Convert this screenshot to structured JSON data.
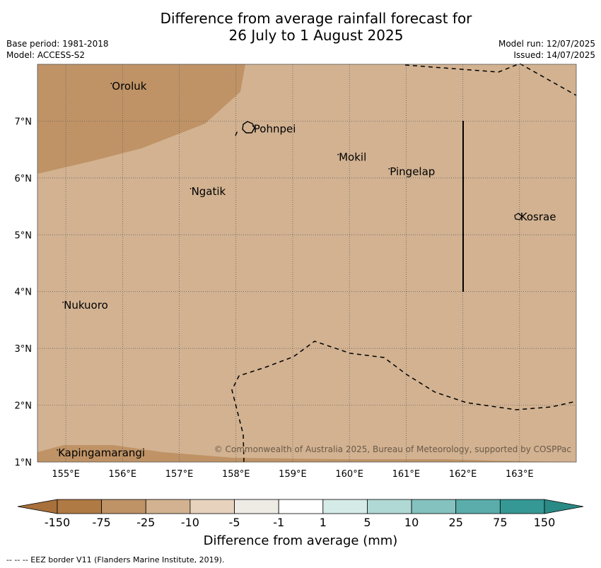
{
  "title_line1": "Difference from average rainfall forecast for",
  "title_line2": "26 July to 1 August 2025",
  "base_period": "Base period: 1981-2018",
  "model": "Model: ACCESS-S2",
  "model_run": "Model run: 12/07/2025",
  "issued": "Issued: 14/07/2025",
  "map": {
    "lon_range": [
      154.5,
      164.0
    ],
    "lat_range": [
      1.0,
      8.0
    ],
    "lon_ticks": [
      "155°E",
      "156°E",
      "157°E",
      "158°E",
      "159°E",
      "160°E",
      "161°E",
      "162°E",
      "163°E"
    ],
    "lat_ticks": [
      "1°N",
      "2°N",
      "3°N",
      "4°N",
      "5°N",
      "6°N",
      "7°N"
    ],
    "background_color": "#d2b291",
    "dry_color": "#bf9366",
    "places": [
      {
        "name": "Oroluk",
        "lon": 155.8,
        "lat": 7.6
      },
      {
        "name": "Pohnpei",
        "lon": 158.3,
        "lat": 6.85
      },
      {
        "name": "Mokil",
        "lon": 159.8,
        "lat": 6.35
      },
      {
        "name": "Pingelap",
        "lon": 160.7,
        "lat": 6.1
      },
      {
        "name": "Ngatik",
        "lon": 157.2,
        "lat": 5.75
      },
      {
        "name": "Kosrae",
        "lon": 163.0,
        "lat": 5.3
      },
      {
        "name": "Nukuoro",
        "lon": 154.95,
        "lat": 3.75
      },
      {
        "name": "Kapingamarangi",
        "lon": 154.85,
        "lat": 1.15
      }
    ],
    "copyright": "© Commonwealth of Australia 2025, Bureau of Meteorology, supported by COSPPac"
  },
  "colorbar": {
    "labels": [
      "-150",
      "-75",
      "-25",
      "-10",
      "-5",
      "-1",
      "1",
      "5",
      "10",
      "25",
      "75",
      "150"
    ],
    "colors": [
      "#a8703a",
      "#b07a45",
      "#bf9366",
      "#d2b291",
      "#e6d2bd",
      "#eeeae4",
      "#ffffff",
      "#d5ebe8",
      "#b0d8d5",
      "#84c2bf",
      "#5aadaa",
      "#359895",
      "#2a8a86"
    ],
    "title": "Difference from average (mm)"
  },
  "eez_note": "--  --  -- EEZ border V11 (Flanders Marine Institute, 2019)."
}
